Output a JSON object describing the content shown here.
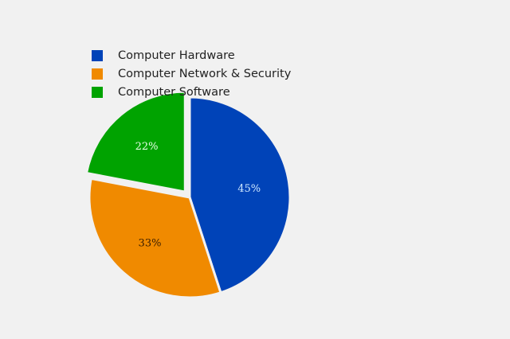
{
  "chart_data": {
    "type": "pie",
    "title": "",
    "legend_position": "top-left",
    "slices": [
      {
        "label": "Computer Hardware",
        "value": 45,
        "display": "45%",
        "color": "#0043b8",
        "label_color": "#cfe8ff",
        "exploded": false
      },
      {
        "label": "Computer Network & Security",
        "value": 33,
        "display": "33%",
        "color": "#f08a00",
        "label_color": "#3a1e00",
        "exploded": false
      },
      {
        "label": "Computer Software",
        "value": 22,
        "display": "22%",
        "color": "#00a300",
        "label_color": "#eaffea",
        "exploded": true
      }
    ]
  }
}
